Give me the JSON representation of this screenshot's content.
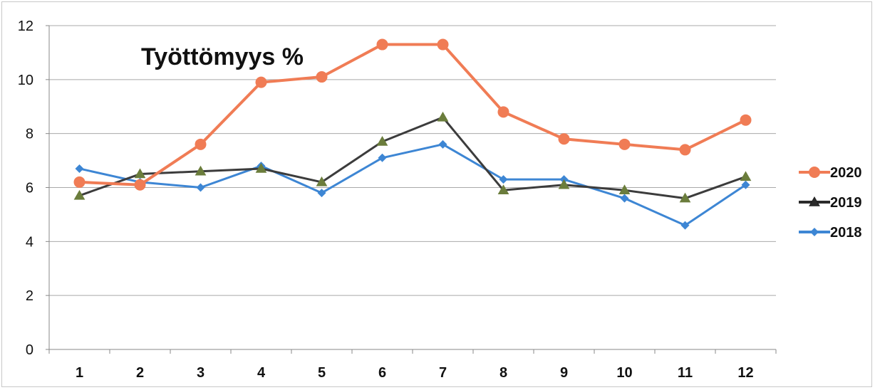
{
  "chart_data": {
    "type": "line",
    "title": "Työttömyys %",
    "xlabel": "",
    "ylabel": "",
    "categories": [
      "1",
      "2",
      "3",
      "4",
      "5",
      "6",
      "7",
      "8",
      "9",
      "10",
      "11",
      "12"
    ],
    "ylim": [
      0,
      12
    ],
    "yticks": [
      "0",
      "2",
      "4",
      "6",
      "8",
      "10",
      "12"
    ],
    "grid": true,
    "legend_position": "right",
    "series": [
      {
        "name": "2020",
        "color": "#f07c55",
        "marker": "circle",
        "values": [
          6.2,
          6.1,
          7.6,
          9.9,
          10.1,
          11.3,
          11.3,
          8.8,
          7.8,
          7.6,
          7.4,
          8.5
        ]
      },
      {
        "name": "2019",
        "color": "#2b2b2b",
        "marker": "triangle",
        "values": [
          5.7,
          6.5,
          6.6,
          6.7,
          6.2,
          7.7,
          8.6,
          5.9,
          6.1,
          5.9,
          5.6,
          6.4
        ]
      },
      {
        "name": "2018",
        "color": "#3d86d4",
        "marker": "diamond",
        "values": [
          6.7,
          6.2,
          6.0,
          6.8,
          5.8,
          7.1,
          7.6,
          6.3,
          6.3,
          5.6,
          4.6,
          6.1
        ]
      }
    ]
  }
}
